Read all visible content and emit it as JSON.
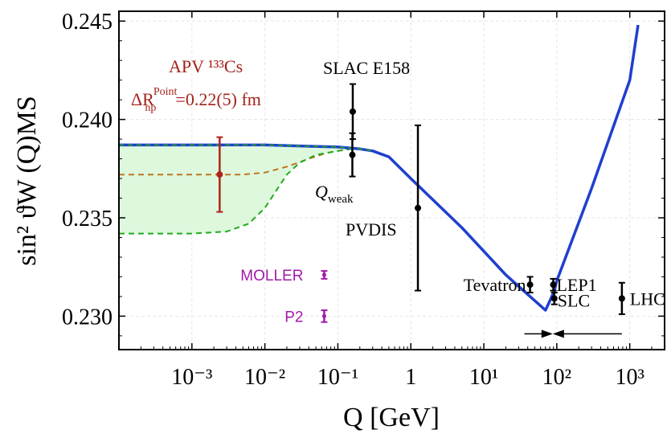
{
  "chart_data": {
    "type": "line",
    "xscale": "log",
    "xlim": [
      0.0001,
      3000
    ],
    "ylim": [
      0.2283,
      0.2455
    ],
    "grid": true,
    "xlabel": "Q [GeV]",
    "ylabel": "sin² ϑW (Q)MS",
    "x_tick_labels": [
      "10⁻³",
      "10⁻²",
      "10⁻¹",
      "1",
      "10¹",
      "10²",
      "10³"
    ],
    "x_tick_values": [
      0.001,
      0.01,
      0.1,
      1,
      10,
      100,
      1000
    ],
    "y_tick_labels": [
      "0.230",
      "0.235",
      "0.240",
      "0.245"
    ],
    "y_tick_values": [
      0.23,
      0.235,
      0.24,
      0.245
    ],
    "curves": [
      {
        "name": "SM running (blue)",
        "color": "#1f3fcf",
        "x": [
          0.0001,
          0.01,
          0.1,
          0.2,
          0.3,
          0.5,
          1,
          5,
          20,
          70,
          91.2,
          100,
          300,
          1000,
          1300
        ],
        "y": [
          0.2387,
          0.2387,
          0.2386,
          0.2385,
          0.2384,
          0.2381,
          0.237,
          0.2345,
          0.2321,
          0.2303,
          0.23122,
          0.2318,
          0.2365,
          0.242,
          0.2448
        ]
      },
      {
        "name": "orange dashed",
        "color": "#c0761e",
        "dash": true,
        "x": [
          0.0001,
          0.001,
          0.005,
          0.01,
          0.02,
          0.04,
          0.07,
          0.1,
          0.15,
          0.2
        ],
        "y": [
          0.2372,
          0.2372,
          0.2372,
          0.2373,
          0.2376,
          0.238,
          0.2383,
          0.2384,
          0.2385,
          0.2385
        ]
      },
      {
        "name": "green dashed",
        "color": "#22aa22",
        "dash": true,
        "x": [
          0.0001,
          0.001,
          0.003,
          0.006,
          0.01,
          0.015,
          0.02,
          0.03,
          0.05,
          0.1,
          0.15,
          0.2
        ],
        "y": [
          0.2342,
          0.2342,
          0.2343,
          0.2347,
          0.2355,
          0.2365,
          0.2372,
          0.2378,
          0.2382,
          0.2384,
          0.2385,
          0.2385
        ]
      }
    ],
    "band": {
      "name": "green band",
      "color": "#ddf8dd",
      "x": [
        0.0001,
        0.001,
        0.003,
        0.006,
        0.01,
        0.015,
        0.02,
        0.03,
        0.05,
        0.1,
        0.15,
        0.2
      ],
      "lower": [
        0.2342,
        0.2342,
        0.2343,
        0.2347,
        0.2355,
        0.2365,
        0.2372,
        0.2378,
        0.2382,
        0.2384,
        0.2385,
        0.2385
      ],
      "upper": [
        0.2387,
        0.2387,
        0.2386,
        0.2386,
        0.2386,
        0.2386,
        0.2386,
        0.2386,
        0.2386,
        0.2386,
        0.2385,
        0.2385
      ]
    },
    "points": [
      {
        "name": "APV Cs",
        "x": 0.0024,
        "y": 0.2372,
        "yerr": 0.0019,
        "color": "#b0231a",
        "label": ""
      },
      {
        "name": "Q_weak",
        "x": 0.158,
        "y": 0.2382,
        "yerr": 0.0011,
        "color": "#000000",
        "label": ""
      },
      {
        "name": "SLAC E158",
        "x": 0.16,
        "y": 0.2404,
        "yerr": 0.0014,
        "color": "#000000",
        "label": "SLAC E158"
      },
      {
        "name": "PVDIS",
        "x": 1.25,
        "y": 0.2355,
        "yerr": 0.0042,
        "color": "#000000",
        "label": "PVDIS"
      },
      {
        "name": "Tevatron",
        "x": 43,
        "y": 0.2316,
        "yerr": 0.0004,
        "color": "#000000",
        "label": "Tevatron"
      },
      {
        "name": "LEP1",
        "x": 89.5,
        "y": 0.2316,
        "yerr": 0.0003,
        "color": "#000000",
        "label": "LEP1"
      },
      {
        "name": "SLC",
        "x": 92.5,
        "y": 0.2309,
        "yerr": 0.0003,
        "color": "#000000",
        "label": "SLC"
      },
      {
        "name": "LHC",
        "x": 780,
        "y": 0.2309,
        "yerr": 0.0008,
        "color": "#000000",
        "label": "LHC"
      },
      {
        "name": "MOLLER",
        "x": 0.065,
        "y": 0.2321,
        "yerr": 0.0002,
        "color": "#a21aa8",
        "label": "MOLLER"
      },
      {
        "name": "P2",
        "x": 0.065,
        "y": 0.23,
        "yerr": 0.0003,
        "color": "#a21aa8",
        "label": "P2"
      }
    ],
    "annotations": {
      "apv_line1": "APV ¹³³Cs",
      "apv_delta": "ΔR",
      "apv_sub": "np",
      "apv_sup": "Point",
      "apv_value": "=0.22(5) fm",
      "qweak_main": "Q",
      "qweak_sub": "weak",
      "arrows_y": 0.2291,
      "arrows_x": [
        36,
        88,
        780
      ]
    }
  }
}
